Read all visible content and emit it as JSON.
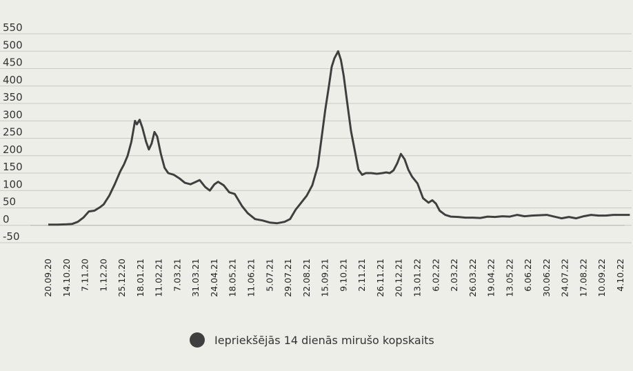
{
  "chart_data": {
    "type": "line",
    "title": "",
    "xlabel": "",
    "ylabel": "",
    "ylim": [
      -50,
      550
    ],
    "yticks": [
      "-50",
      "0",
      "50",
      "100",
      "150",
      "200",
      "250",
      "300",
      "350",
      "400",
      "450",
      "500",
      "550"
    ],
    "grid": "horizontal",
    "legend_position": "bottom",
    "x": [
      "20.09.20",
      "14.10.20",
      "7.11.20",
      "1.12.20",
      "25.12.20",
      "18.01.21",
      "11.02.21",
      "7.03.21",
      "31.03.21",
      "24.04.21",
      "18.05.21",
      "11.06.21",
      "5.07.21",
      "29.07.21",
      "22.08.21",
      "15.09.21",
      "9.10.21",
      "2.11.21",
      "26.11.21",
      "20.12.21",
      "13.01.22",
      "6.02.22",
      "2.03.22",
      "26.03.22",
      "19.04.22",
      "13.05.22",
      "6.06.22",
      "30.06.22",
      "24.07.22",
      "17.08.22",
      "10.09.22",
      "4.10.22"
    ],
    "series": [
      {
        "name": "Iepriekšējās 14 dienās mirušo kopskaits",
        "color": "#3f3f3f",
        "values": [
          [
            0,
            2
          ],
          [
            0.5,
            2
          ],
          [
            1,
            3
          ],
          [
            1.3,
            4
          ],
          [
            1.6,
            10
          ],
          [
            1.9,
            22
          ],
          [
            2.2,
            40
          ],
          [
            2.5,
            42
          ],
          [
            2.8,
            52
          ],
          [
            3.0,
            60
          ],
          [
            3.3,
            85
          ],
          [
            3.6,
            118
          ],
          [
            3.9,
            155
          ],
          [
            4.1,
            175
          ],
          [
            4.3,
            200
          ],
          [
            4.5,
            240
          ],
          [
            4.7,
            300
          ],
          [
            4.8,
            290
          ],
          [
            4.95,
            303
          ],
          [
            5.1,
            280
          ],
          [
            5.3,
            240
          ],
          [
            5.45,
            218
          ],
          [
            5.6,
            235
          ],
          [
            5.75,
            268
          ],
          [
            5.9,
            255
          ],
          [
            6.1,
            205
          ],
          [
            6.3,
            165
          ],
          [
            6.5,
            150
          ],
          [
            6.8,
            145
          ],
          [
            7.1,
            135
          ],
          [
            7.4,
            122
          ],
          [
            7.7,
            118
          ],
          [
            8.0,
            125
          ],
          [
            8.2,
            130
          ],
          [
            8.5,
            110
          ],
          [
            8.75,
            100
          ],
          [
            9.0,
            118
          ],
          [
            9.2,
            125
          ],
          [
            9.5,
            115
          ],
          [
            9.8,
            95
          ],
          [
            10.1,
            90
          ],
          [
            10.5,
            55
          ],
          [
            10.8,
            35
          ],
          [
            11.2,
            18
          ],
          [
            11.6,
            14
          ],
          [
            12.0,
            8
          ],
          [
            12.4,
            6
          ],
          [
            12.8,
            10
          ],
          [
            13.1,
            18
          ],
          [
            13.4,
            45
          ],
          [
            13.7,
            65
          ],
          [
            14.0,
            85
          ],
          [
            14.3,
            115
          ],
          [
            14.6,
            170
          ],
          [
            14.8,
            250
          ],
          [
            15.0,
            330
          ],
          [
            15.2,
            400
          ],
          [
            15.35,
            455
          ],
          [
            15.5,
            480
          ],
          [
            15.7,
            500
          ],
          [
            15.85,
            475
          ],
          [
            16.0,
            430
          ],
          [
            16.2,
            350
          ],
          [
            16.4,
            270
          ],
          [
            16.6,
            215
          ],
          [
            16.8,
            160
          ],
          [
            17.0,
            145
          ],
          [
            17.2,
            150
          ],
          [
            17.5,
            150
          ],
          [
            17.8,
            148
          ],
          [
            18.1,
            150
          ],
          [
            18.3,
            152
          ],
          [
            18.5,
            150
          ],
          [
            18.7,
            158
          ],
          [
            18.9,
            178
          ],
          [
            19.1,
            205
          ],
          [
            19.3,
            190
          ],
          [
            19.5,
            160
          ],
          [
            19.7,
            140
          ],
          [
            20.0,
            120
          ],
          [
            20.3,
            78
          ],
          [
            20.6,
            65
          ],
          [
            20.8,
            72
          ],
          [
            21.0,
            62
          ],
          [
            21.2,
            42
          ],
          [
            21.5,
            30
          ],
          [
            21.8,
            25
          ],
          [
            22.2,
            24
          ],
          [
            22.6,
            22
          ],
          [
            23.0,
            22
          ],
          [
            23.4,
            21
          ],
          [
            23.8,
            25
          ],
          [
            24.2,
            24
          ],
          [
            24.6,
            26
          ],
          [
            25.0,
            25
          ],
          [
            25.4,
            30
          ],
          [
            25.8,
            26
          ],
          [
            26.2,
            28
          ],
          [
            26.6,
            29
          ],
          [
            27.0,
            30
          ],
          [
            27.4,
            25
          ],
          [
            27.8,
            20
          ],
          [
            28.2,
            24
          ],
          [
            28.6,
            20
          ],
          [
            29.0,
            26
          ],
          [
            29.4,
            30
          ],
          [
            29.8,
            28
          ],
          [
            30.2,
            28
          ],
          [
            30.6,
            30
          ],
          [
            31.0,
            30
          ],
          [
            31.5,
            30
          ]
        ]
      }
    ]
  }
}
